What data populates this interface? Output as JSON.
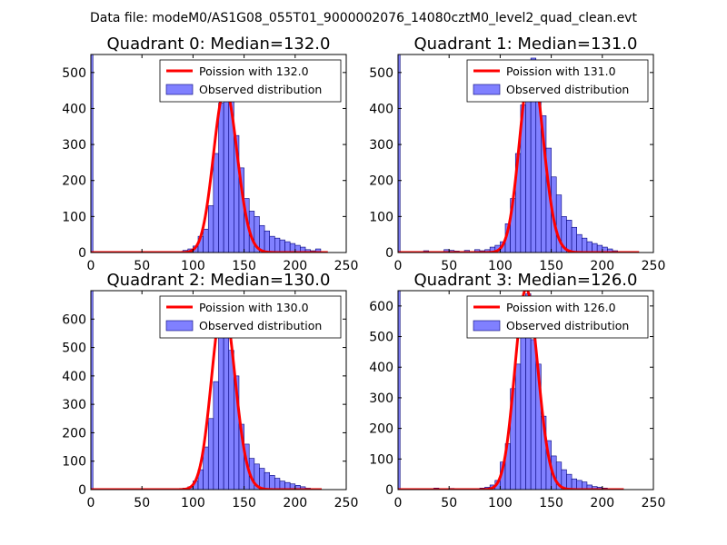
{
  "suptitle": "Data file: modeM0/AS1G08_055T01_9000002076_14080cztM0_level2_quad_clean.evt",
  "legend": {
    "observed_label": "Observed distribution"
  },
  "colors": {
    "poisson": "#ff0000",
    "bars": "#8080ff",
    "bar_edge": "#00007a"
  },
  "chart_data": [
    {
      "type": "bar",
      "title": "Quadrant 0: Median=132.0",
      "legend_poisson": "Poission with 132.0",
      "xlim": [
        0,
        250
      ],
      "ylim": [
        0,
        550
      ],
      "xticks": [
        "0",
        "50",
        "100",
        "150",
        "200",
        "250"
      ],
      "yticks": [
        "0",
        "100",
        "200",
        "300",
        "400",
        "500"
      ],
      "bin_width": 5,
      "zero_bin": 550,
      "bars": [
        [
          80,
          2
        ],
        [
          85,
          3
        ],
        [
          90,
          6
        ],
        [
          95,
          10
        ],
        [
          100,
          18
        ],
        [
          105,
          45
        ],
        [
          110,
          65
        ],
        [
          115,
          130
        ],
        [
          120,
          275
        ],
        [
          125,
          415
        ],
        [
          130,
          510
        ],
        [
          135,
          440
        ],
        [
          140,
          325
        ],
        [
          145,
          235
        ],
        [
          150,
          150
        ],
        [
          155,
          115
        ],
        [
          160,
          100
        ],
        [
          165,
          75
        ],
        [
          170,
          60
        ],
        [
          175,
          45
        ],
        [
          180,
          40
        ],
        [
          185,
          35
        ],
        [
          190,
          30
        ],
        [
          195,
          25
        ],
        [
          200,
          20
        ],
        [
          205,
          15
        ],
        [
          210,
          8
        ],
        [
          215,
          5
        ],
        [
          220,
          10
        ],
        [
          225,
          3
        ]
      ],
      "poisson_mean": 132,
      "poisson_peak": 455,
      "poisson_range": [
        0,
        232
      ]
    },
    {
      "type": "bar",
      "title": "Quadrant 1: Median=131.0",
      "legend_poisson": "Poission with 131.0",
      "xlim": [
        0,
        250
      ],
      "ylim": [
        0,
        550
      ],
      "xticks": [
        "0",
        "50",
        "100",
        "150",
        "200",
        "250"
      ],
      "yticks": [
        "0",
        "100",
        "200",
        "300",
        "400",
        "500"
      ],
      "bin_width": 5,
      "zero_bin": 550,
      "bars": [
        [
          25,
          5
        ],
        [
          30,
          3
        ],
        [
          45,
          8
        ],
        [
          50,
          6
        ],
        [
          55,
          4
        ],
        [
          65,
          6
        ],
        [
          75,
          8
        ],
        [
          80,
          5
        ],
        [
          85,
          8
        ],
        [
          90,
          15
        ],
        [
          95,
          20
        ],
        [
          100,
          30
        ],
        [
          105,
          80
        ],
        [
          110,
          150
        ],
        [
          115,
          275
        ],
        [
          120,
          410
        ],
        [
          125,
          525
        ],
        [
          130,
          540
        ],
        [
          135,
          470
        ],
        [
          140,
          380
        ],
        [
          145,
          290
        ],
        [
          150,
          210
        ],
        [
          155,
          160
        ],
        [
          160,
          100
        ],
        [
          165,
          90
        ],
        [
          170,
          70
        ],
        [
          175,
          50
        ],
        [
          180,
          40
        ],
        [
          185,
          30
        ],
        [
          190,
          25
        ],
        [
          195,
          20
        ],
        [
          200,
          15
        ],
        [
          205,
          10
        ],
        [
          210,
          5
        ],
        [
          215,
          3
        ]
      ],
      "poisson_mean": 131,
      "poisson_peak": 525,
      "poisson_range": [
        0,
        236
      ]
    },
    {
      "type": "bar",
      "title": "Quadrant 2: Median=130.0",
      "legend_poisson": "Poission with 130.0",
      "xlim": [
        0,
        250
      ],
      "ylim": [
        0,
        700
      ],
      "xticks": [
        "0",
        "50",
        "100",
        "150",
        "200",
        "250"
      ],
      "yticks": [
        "0",
        "100",
        "200",
        "300",
        "400",
        "500",
        "600"
      ],
      "bin_width": 5,
      "zero_bin": 700,
      "bars": [
        [
          85,
          3
        ],
        [
          90,
          5
        ],
        [
          95,
          10
        ],
        [
          100,
          30
        ],
        [
          105,
          70
        ],
        [
          110,
          150
        ],
        [
          115,
          250
        ],
        [
          120,
          380
        ],
        [
          125,
          560
        ],
        [
          130,
          660
        ],
        [
          135,
          490
        ],
        [
          140,
          400
        ],
        [
          145,
          230
        ],
        [
          150,
          160
        ],
        [
          155,
          110
        ],
        [
          160,
          90
        ],
        [
          165,
          75
        ],
        [
          170,
          60
        ],
        [
          175,
          50
        ],
        [
          180,
          40
        ],
        [
          185,
          30
        ],
        [
          190,
          25
        ],
        [
          195,
          20
        ],
        [
          200,
          15
        ],
        [
          205,
          10
        ],
        [
          210,
          5
        ],
        [
          215,
          3
        ]
      ],
      "poisson_mean": 130,
      "poisson_peak": 655,
      "poisson_range": [
        0,
        226
      ]
    },
    {
      "type": "bar",
      "title": "Quadrant 3: Median=126.0",
      "legend_poisson": "Poission with 126.0",
      "xlim": [
        0,
        250
      ],
      "ylim": [
        0,
        650
      ],
      "xticks": [
        "0",
        "50",
        "100",
        "150",
        "200",
        "250"
      ],
      "yticks": [
        "0",
        "100",
        "200",
        "300",
        "400",
        "500",
        "600"
      ],
      "bin_width": 5,
      "zero_bin": 650,
      "bars": [
        [
          35,
          5
        ],
        [
          50,
          4
        ],
        [
          60,
          3
        ],
        [
          75,
          3
        ],
        [
          80,
          5
        ],
        [
          85,
          8
        ],
        [
          90,
          15
        ],
        [
          95,
          30
        ],
        [
          100,
          90
        ],
        [
          105,
          150
        ],
        [
          110,
          330
        ],
        [
          115,
          410
        ],
        [
          120,
          570
        ],
        [
          125,
          640
        ],
        [
          130,
          490
        ],
        [
          135,
          410
        ],
        [
          140,
          240
        ],
        [
          145,
          160
        ],
        [
          150,
          110
        ],
        [
          155,
          90
        ],
        [
          160,
          65
        ],
        [
          165,
          50
        ],
        [
          170,
          35
        ],
        [
          175,
          30
        ],
        [
          180,
          25
        ],
        [
          185,
          15
        ],
        [
          190,
          10
        ],
        [
          195,
          8
        ],
        [
          200,
          5
        ],
        [
          205,
          3
        ]
      ],
      "poisson_mean": 126,
      "poisson_peak": 655,
      "poisson_range": [
        0,
        221
      ]
    }
  ]
}
